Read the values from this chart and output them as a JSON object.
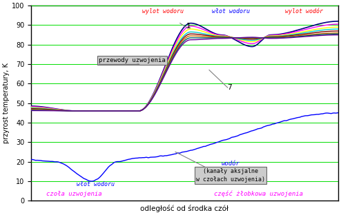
{
  "xlabel": "odległość od środka czół",
  "ylabel": "przyrost temperatury, K",
  "ylim": [
    0,
    100
  ],
  "xlim": [
    0,
    100
  ],
  "bg_color": "#ffffff",
  "grid_color": "#00dd00",
  "label_czola_left": "czoła uzwojenia",
  "label_czola_right": "część żłobkowa uzwojenia",
  "label_przewody": "przewody uzwojenia",
  "label_wodor_title": "wodór",
  "label_wodor_body": "(kanały aksjalne\nw czołach uzwojenia)",
  "label_wlot": "włot wodoru",
  "label_wylot_1": "wylot wodoru",
  "label_wlot_2": "włot wodoru",
  "label_wylot_3": "wylot wodór",
  "winding_colors": [
    "#000080",
    "#ff00ff",
    "#ffff00",
    "#00cccc",
    "#800000",
    "#cc6600",
    "#006060",
    "#660099"
  ],
  "color_hydrogen": "#0000ff",
  "color_gray": "#808080",
  "color_magenta": "#ff00ff",
  "color_red": "#ff0000",
  "color_blue": "#0000ff"
}
